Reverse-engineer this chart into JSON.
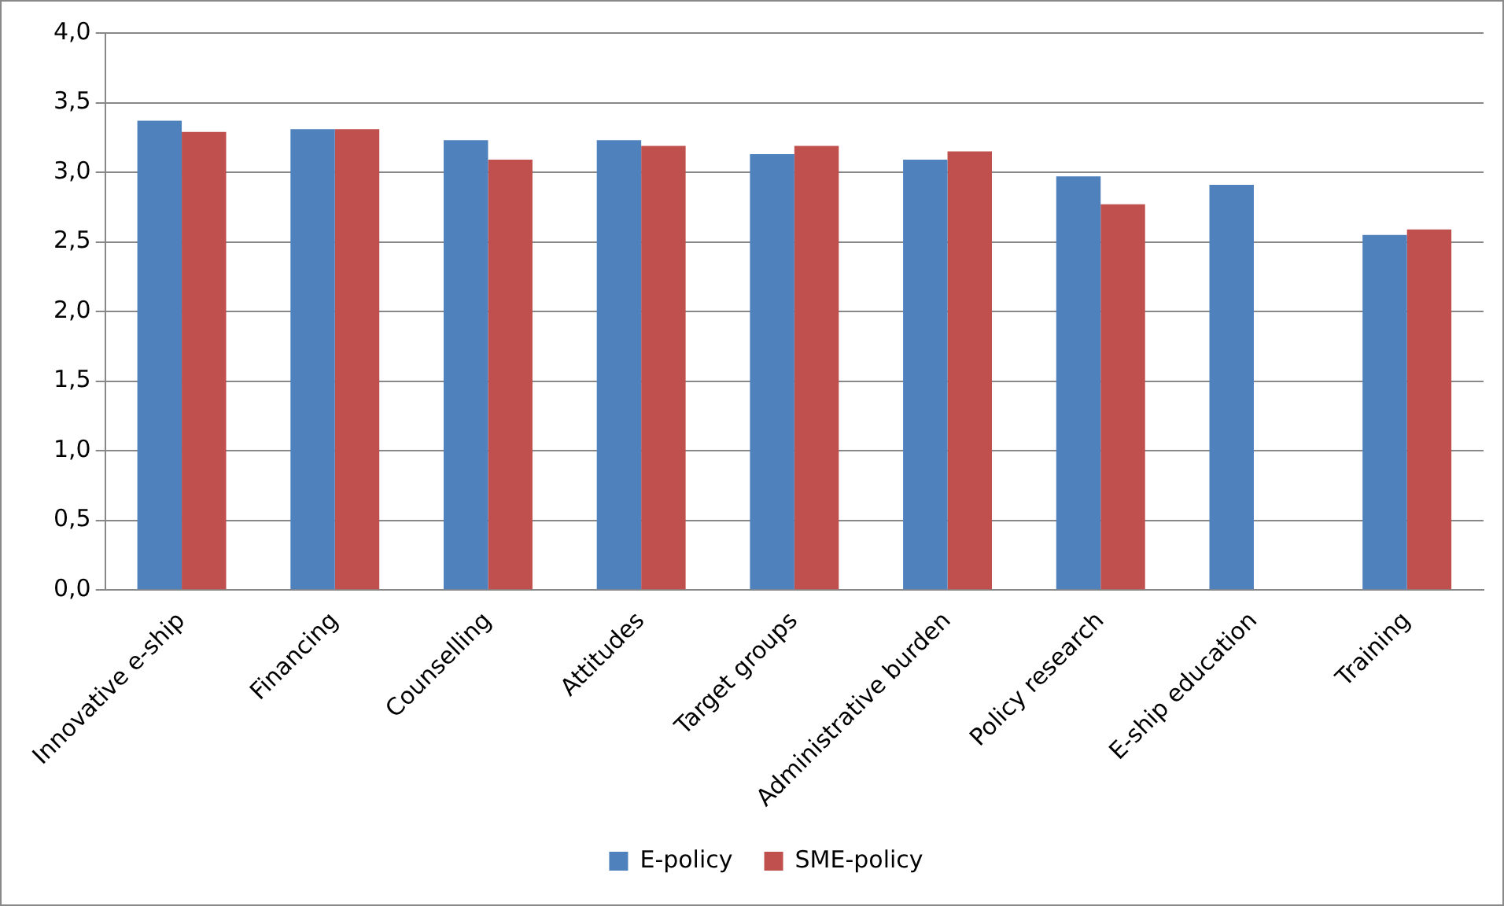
{
  "chart_data": {
    "type": "bar",
    "categories": [
      "Innovative e-ship",
      "Financing",
      "Counselling",
      "Attitudes",
      "Target groups",
      "Administrative burden",
      "Policy research",
      "E-ship education",
      "Training"
    ],
    "series": [
      {
        "name": "E-policy",
        "color": "#4f81bd",
        "values": [
          3.37,
          3.31,
          3.23,
          3.23,
          3.13,
          3.09,
          2.97,
          2.91,
          2.55
        ]
      },
      {
        "name": "SME-policy",
        "color": "#c0504d",
        "values": [
          3.29,
          3.31,
          3.09,
          3.19,
          3.19,
          3.15,
          2.77,
          null,
          2.59
        ]
      }
    ],
    "ylim": [
      0,
      4
    ],
    "yticks": [
      {
        "value": 0,
        "label": "0,0"
      },
      {
        "value": 0.5,
        "label": "0,5"
      },
      {
        "value": 1,
        "label": "1,0"
      },
      {
        "value": 1.5,
        "label": "1,5"
      },
      {
        "value": 2,
        "label": "2,0"
      },
      {
        "value": 2.5,
        "label": "2,5"
      },
      {
        "value": 3,
        "label": "3,0"
      },
      {
        "value": 3.5,
        "label": "3,5"
      },
      {
        "value": 4,
        "label": "4,0"
      }
    ],
    "grid": "y",
    "legend": "bottom"
  }
}
